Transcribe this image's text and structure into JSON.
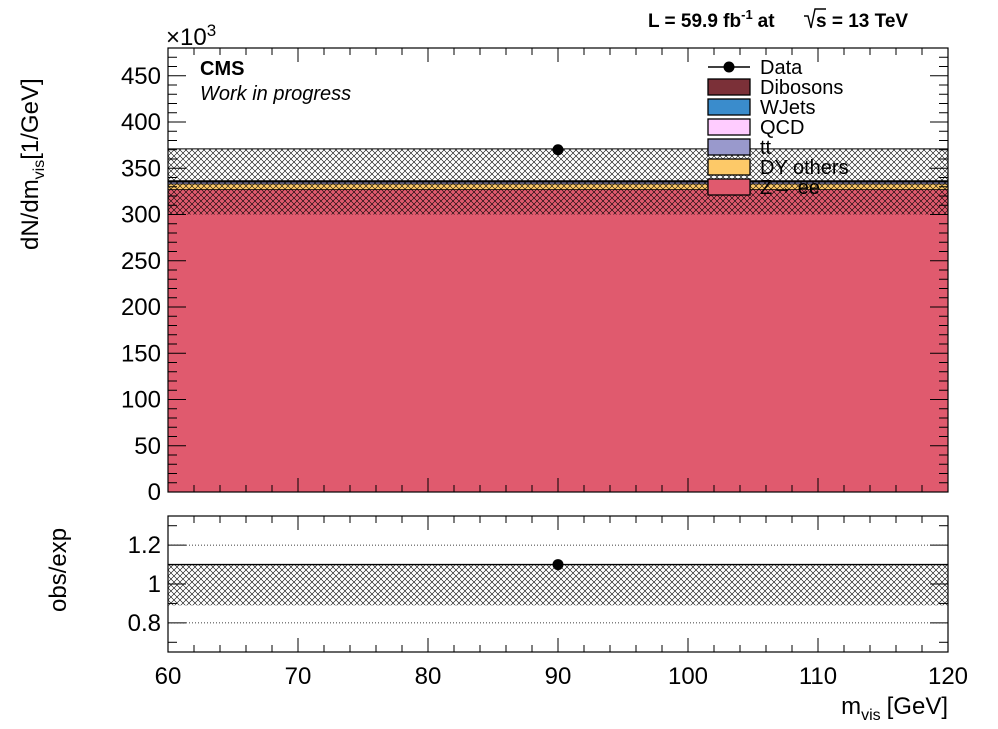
{
  "header": {
    "lumi_text": "L = 59.9 fb",
    "lumi_sup": "-1",
    "at_text": "at",
    "sqrt_s_text": "s = 13 TeV"
  },
  "labels": {
    "cms": "CMS",
    "status": "Work in progress",
    "exponent_base": "×10",
    "exponent_power": "3",
    "ylabel_main_a": "dN/dm",
    "ylabel_main_sub": "vis",
    "ylabel_main_b": "[1/GeV]",
    "ylabel_ratio": "obs/exp",
    "xlabel_a": "m",
    "xlabel_sub": "vis",
    "xlabel_b": "[GeV]"
  },
  "chart_data": [
    {
      "type": "bar",
      "stacked": true,
      "x_edges": [
        60,
        120
      ],
      "xlim": [
        60,
        120
      ],
      "ylim": [
        0,
        480
      ],
      "y_scale_factor": 1000,
      "y_ticks": [
        0,
        50,
        100,
        150,
        200,
        250,
        300,
        350,
        400,
        450
      ],
      "y_tick_labels": [
        "0",
        "50",
        "100",
        "150",
        "200",
        "250",
        "300",
        "350",
        "400",
        "450"
      ],
      "legend_position": "top-right",
      "series": [
        {
          "name": "Z→ ee",
          "values": [
            327
          ],
          "color": "#e05a6e"
        },
        {
          "name": "DY others",
          "values": [
            6
          ],
          "color": "#fdc968"
        },
        {
          "name": "tt",
          "values": [
            2
          ],
          "color": "#9999cc"
        },
        {
          "name": "QCD",
          "values": [
            0.5
          ],
          "color": "#ffccff"
        },
        {
          "name": "WJets",
          "values": [
            0.5
          ],
          "color": "#3a8ccc"
        },
        {
          "name": "Dibosons",
          "values": [
            0.5
          ],
          "color": "#7b3038"
        }
      ],
      "stack_total": 336.5,
      "uncertainty_band": [
        300,
        371
      ],
      "data_points": [
        {
          "name": "Data",
          "x": 90,
          "y": 370
        }
      ],
      "legend": [
        "Data",
        "Dibosons",
        "WJets",
        "QCD",
        "tt",
        "DY others",
        "Z→ ee"
      ]
    },
    {
      "type": "scatter",
      "xlim": [
        60,
        120
      ],
      "ylim": [
        0.65,
        1.35
      ],
      "y_ticks": [
        0.8,
        1,
        1.2
      ],
      "y_tick_labels": [
        "0.8",
        "1",
        "1.2"
      ],
      "x_ticks": [
        60,
        70,
        80,
        90,
        100,
        110,
        120
      ],
      "x_tick_labels": [
        "60",
        "70",
        "80",
        "90",
        "100",
        "110",
        "120"
      ],
      "gridlines_y": [
        0.8,
        1.2
      ],
      "uncertainty_band": [
        0.89,
        1.1
      ],
      "reference_line": 1.1,
      "data_points": [
        {
          "x": 90,
          "y": 1.1
        }
      ]
    }
  ]
}
